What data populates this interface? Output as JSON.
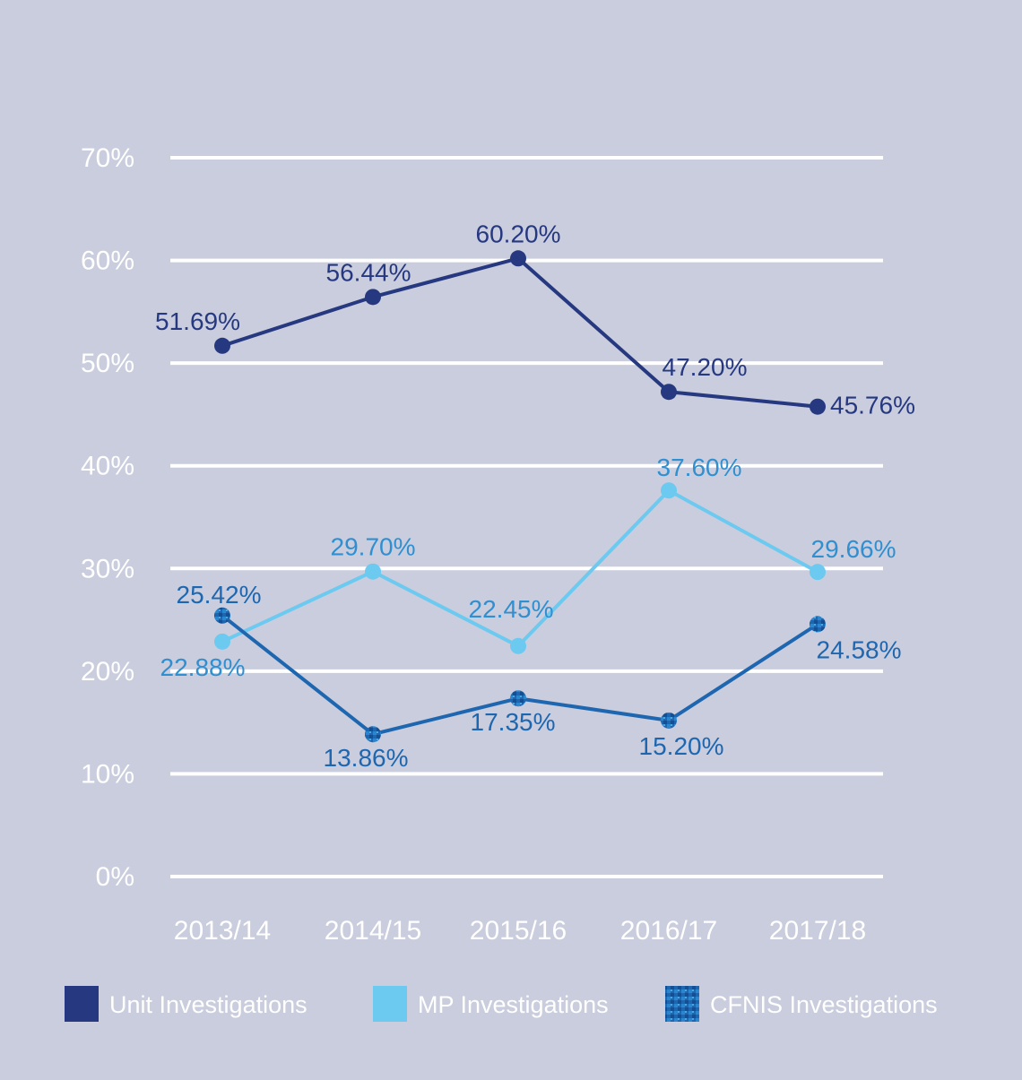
{
  "colors": {
    "background": "#c9cddd",
    "grid": "#ffffff",
    "tick_text": "#ffffff",
    "unit": "#263880",
    "mp": "#6cc9f0",
    "cfnis": "#1e67b0"
  },
  "chart_data": {
    "type": "line",
    "categories": [
      "2013/14",
      "2014/15",
      "2015/16",
      "2016/17",
      "2017/18"
    ],
    "ylim": [
      0,
      70
    ],
    "yticks": [
      0,
      10,
      20,
      30,
      40,
      50,
      60,
      70
    ],
    "ytick_labels": [
      "0%",
      "10%",
      "20%",
      "30%",
      "40%",
      "50%",
      "60%",
      "70%"
    ],
    "grid": "horizontal",
    "legend_position": "bottom",
    "series": [
      {
        "key": "unit",
        "name": "Unit Investigations",
        "color": "#263880",
        "values": [
          51.69,
          56.44,
          60.2,
          47.2,
          45.76
        ],
        "labels": [
          "51.69%",
          "56.44%",
          "60.20%",
          "47.20%",
          "45.76%"
        ]
      },
      {
        "key": "mp",
        "name": "MP Investigations",
        "color": "#6cc9f0",
        "values": [
          22.88,
          29.7,
          22.45,
          37.6,
          29.66
        ],
        "labels": [
          "22.88%",
          "29.70%",
          "22.45%",
          "37.60%",
          "29.66%"
        ]
      },
      {
        "key": "cfnis",
        "name": "CFNIS Investigations",
        "color": "#1e67b0",
        "values": [
          25.42,
          13.86,
          17.35,
          15.2,
          24.58
        ],
        "labels": [
          "25.42%",
          "13.86%",
          "17.35%",
          "15.20%",
          "24.58%"
        ]
      }
    ]
  }
}
